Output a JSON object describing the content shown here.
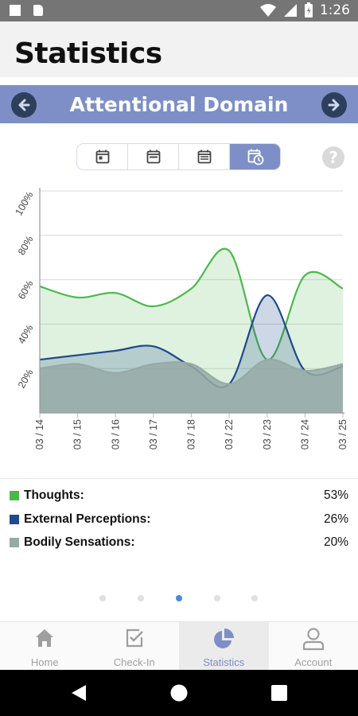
{
  "status_bar": {
    "time": "1:26"
  },
  "header": {
    "title": "Statistics"
  },
  "domain_nav": {
    "title": "Attentional Domain"
  },
  "period_selector": {
    "options": [
      "day",
      "week",
      "month",
      "custom range"
    ],
    "active_index": 3
  },
  "chart_data": {
    "type": "area",
    "categories": [
      "03 / 14",
      "03 / 15",
      "03 / 16",
      "03 / 17",
      "03 / 18",
      "03 / 22",
      "03 / 23",
      "03 / 24",
      "03 / 25"
    ],
    "y_ticks": [
      "20%",
      "40%",
      "60%",
      "80%",
      "100%"
    ],
    "ylim": [
      0,
      100
    ],
    "grid": true,
    "series": [
      {
        "name": "Thoughts",
        "color": "#4cb84c",
        "values": [
          57,
          52,
          54,
          48,
          56,
          73,
          24,
          62,
          56
        ]
      },
      {
        "name": "External Perceptions",
        "color": "#1f4a8c",
        "values": [
          24,
          26,
          28,
          30,
          21,
          13,
          53,
          19,
          21
        ]
      },
      {
        "name": "Bodily Sensations",
        "color": "#96aaa6",
        "values": [
          20,
          22,
          18,
          22,
          22,
          13,
          24,
          19,
          22
        ]
      }
    ]
  },
  "legend": [
    {
      "label": "Thoughts:",
      "value": "53%",
      "color": "#4cb84c"
    },
    {
      "label": "External Perceptions:",
      "value": "26%",
      "color": "#1f4a8c"
    },
    {
      "label": "Bodily Sensations:",
      "value": "20%",
      "color": "#96aaa6"
    }
  ],
  "pager": {
    "count": 5,
    "active_index": 2
  },
  "tabs": [
    {
      "label": "Home",
      "icon": "home-icon"
    },
    {
      "label": "Check-In",
      "icon": "check-in-icon"
    },
    {
      "label": "Statistics",
      "icon": "pie-chart-icon",
      "active": true
    },
    {
      "label": "Account",
      "icon": "account-icon"
    }
  ]
}
